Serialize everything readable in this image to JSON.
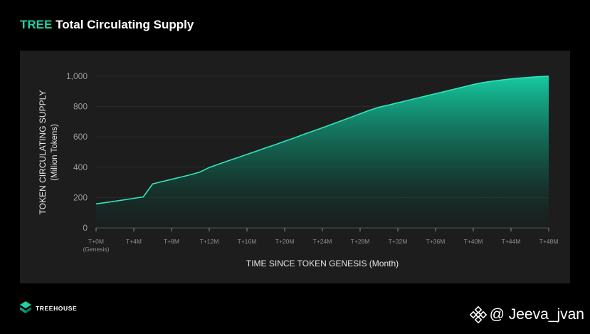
{
  "title": {
    "accent": "TREE",
    "rest": "Total Circulating Supply"
  },
  "brand": {
    "name": "TREEHOUSE"
  },
  "watermark": {
    "text": "@ Jeeva_jvan"
  },
  "colors": {
    "accent": "#1fd1a5",
    "line": "#2ee6bd",
    "panel": "#1d1d1d",
    "background": "#000000"
  },
  "chart_data": {
    "type": "area",
    "xlabel": "TIME SINCE TOKEN GENESIS (Month)",
    "ylabel": "TOKEN CIRCULATING SUPPLY",
    "ylabel_sub": "(Million Tokens)",
    "xlim": [
      0,
      48
    ],
    "ylim": [
      0,
      1000
    ],
    "yticks": [
      0,
      200,
      400,
      600,
      800,
      1000
    ],
    "ytick_labels": [
      "0",
      "200",
      "400",
      "600",
      "800",
      "1,000"
    ],
    "xticks": [
      0,
      4,
      8,
      12,
      16,
      20,
      24,
      28,
      32,
      36,
      40,
      44,
      48
    ],
    "xtick_labels": [
      "T+0M",
      "T+4M",
      "T+8M",
      "T+12M",
      "T+16M",
      "T+20M",
      "T+24M",
      "T+28M",
      "T+32M",
      "T+36M",
      "T+40M",
      "T+44M",
      "T+48M"
    ],
    "xtick_sublabel": "(Genesis)",
    "grid": true,
    "series": [
      {
        "x": [
          0,
          1,
          2,
          3,
          4,
          5,
          6,
          7,
          8,
          9,
          10,
          11,
          12,
          13,
          14,
          15,
          16,
          17,
          18,
          19,
          20,
          21,
          22,
          23,
          24,
          25,
          26,
          27,
          28,
          29,
          30,
          31,
          32,
          33,
          34,
          35,
          36,
          37,
          38,
          39,
          40,
          41,
          42,
          43,
          44,
          45,
          46,
          47,
          48
        ],
        "y": [
          158,
          167,
          176,
          185,
          195,
          204,
          290,
          305,
          320,
          335,
          350,
          368,
          398,
          420,
          442,
          463,
          485,
          506,
          528,
          549,
          571,
          593,
          616,
          638,
          660,
          683,
          706,
          729,
          752,
          776,
          796,
          810,
          825,
          840,
          855,
          870,
          885,
          900,
          915,
          930,
          945,
          958,
          967,
          975,
          982,
          988,
          993,
          997,
          1000
        ]
      }
    ]
  }
}
